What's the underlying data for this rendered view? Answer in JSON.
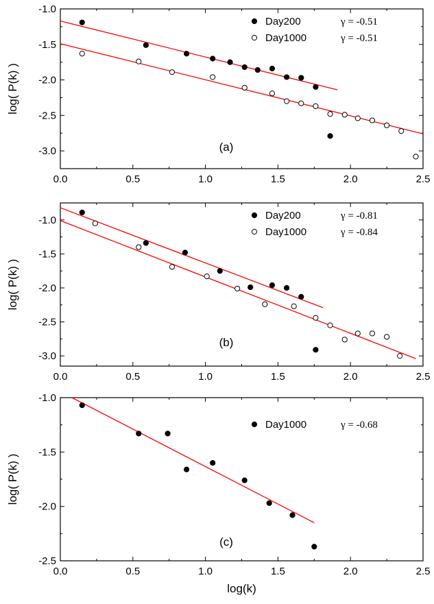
{
  "chart_data": [
    {
      "type": "scatter",
      "panel_label": "(a)",
      "xlim": [
        0.0,
        2.5
      ],
      "ylim": [
        -3.25,
        -1.0
      ],
      "xticks": [
        "0.0",
        "0.5",
        "1.0",
        "1.5",
        "2.0",
        "2.5"
      ],
      "yticks": [
        "-1.0",
        "-1.5",
        "-2.0",
        "-2.5",
        "-3.0"
      ],
      "ylabel": "log( P(k) )",
      "xlabel": "",
      "series": [
        {
          "name": "Day200",
          "gamma": "γ = -0.51",
          "marker": "filled",
          "points": [
            [
              0.15,
              -1.19
            ],
            [
              0.59,
              -1.51
            ],
            [
              0.87,
              -1.63
            ],
            [
              1.05,
              -1.7
            ],
            [
              1.17,
              -1.75
            ],
            [
              1.27,
              -1.82
            ],
            [
              1.36,
              -1.86
            ],
            [
              1.46,
              -1.84
            ],
            [
              1.56,
              -1.96
            ],
            [
              1.66,
              -1.97
            ],
            [
              1.76,
              -2.1
            ],
            [
              1.86,
              -2.79
            ]
          ],
          "fit": [
            [
              0.0,
              -1.17
            ],
            [
              1.91,
              -2.14
            ]
          ]
        },
        {
          "name": "Day1000",
          "gamma": "γ = -0.51",
          "marker": "open",
          "points": [
            [
              0.15,
              -1.63
            ],
            [
              0.54,
              -1.74
            ],
            [
              0.77,
              -1.89
            ],
            [
              1.05,
              -1.96
            ],
            [
              1.27,
              -2.11
            ],
            [
              1.46,
              -2.19
            ],
            [
              1.56,
              -2.3
            ],
            [
              1.66,
              -2.33
            ],
            [
              1.76,
              -2.37
            ],
            [
              1.86,
              -2.48
            ],
            [
              1.96,
              -2.49
            ],
            [
              2.05,
              -2.54
            ],
            [
              2.15,
              -2.57
            ],
            [
              2.25,
              -2.64
            ],
            [
              2.35,
              -2.72
            ],
            [
              2.45,
              -3.08
            ]
          ],
          "fit": [
            [
              0.0,
              -1.49
            ],
            [
              2.5,
              -2.76
            ]
          ]
        }
      ]
    },
    {
      "type": "scatter",
      "panel_label": "(b)",
      "xlim": [
        0.0,
        2.5
      ],
      "ylim": [
        -3.15,
        -0.75
      ],
      "xticks": [
        "0.0",
        "0.5",
        "1.0",
        "1.5",
        "2.0",
        "2.5"
      ],
      "yticks": [
        "-1.0",
        "-1.5",
        "-2.0",
        "-2.5",
        "-3.0"
      ],
      "ylabel": "log( P(k) )",
      "xlabel": "",
      "series": [
        {
          "name": "Day200",
          "gamma": "γ = -0.81",
          "marker": "filled",
          "points": [
            [
              0.15,
              -0.89
            ],
            [
              0.59,
              -1.34
            ],
            [
              0.86,
              -1.48
            ],
            [
              1.1,
              -1.75
            ],
            [
              1.31,
              -1.99
            ],
            [
              1.46,
              -1.96
            ],
            [
              1.56,
              -2.0
            ],
            [
              1.66,
              -2.13
            ],
            [
              1.76,
              -2.91
            ]
          ],
          "fit": [
            [
              0.0,
              -0.82
            ],
            [
              1.81,
              -2.29
            ]
          ]
        },
        {
          "name": "Day1000",
          "gamma": "γ = -0.84",
          "marker": "open",
          "points": [
            [
              0.24,
              -1.05
            ],
            [
              0.54,
              -1.4
            ],
            [
              0.77,
              -1.69
            ],
            [
              1.01,
              -1.83
            ],
            [
              1.22,
              -2.01
            ],
            [
              1.41,
              -2.24
            ],
            [
              1.61,
              -2.27
            ],
            [
              1.76,
              -2.44
            ],
            [
              1.86,
              -2.55
            ],
            [
              1.96,
              -2.76
            ],
            [
              2.05,
              -2.67
            ],
            [
              2.15,
              -2.67
            ],
            [
              2.25,
              -2.72
            ],
            [
              2.34,
              -3.0
            ]
          ],
          "fit": [
            [
              0.0,
              -1.01
            ],
            [
              2.45,
              -3.04
            ]
          ]
        }
      ]
    },
    {
      "type": "scatter",
      "panel_label": "(c)",
      "xlim": [
        0.0,
        2.5
      ],
      "ylim": [
        -2.5,
        -1.0
      ],
      "xticks": [
        "0.0",
        "0.5",
        "1.0",
        "1.5",
        "2.0",
        "2.5"
      ],
      "yticks": [
        "-1.0",
        "-1.5",
        "-2.0",
        "-2.5"
      ],
      "ylabel": "log( P(k) )",
      "xlabel": "log(k)",
      "series": [
        {
          "name": "Day1000",
          "gamma": "γ = -0.68",
          "marker": "filled",
          "points": [
            [
              0.15,
              -1.07
            ],
            [
              0.54,
              -1.33
            ],
            [
              0.74,
              -1.33
            ],
            [
              0.87,
              -1.66
            ],
            [
              1.05,
              -1.6
            ],
            [
              1.27,
              -1.76
            ],
            [
              1.44,
              -1.97
            ],
            [
              1.6,
              -2.08
            ],
            [
              1.75,
              -2.37
            ]
          ],
          "fit": [
            [
              0.08,
              -1.0
            ],
            [
              1.75,
              -2.15
            ]
          ]
        }
      ]
    }
  ],
  "colors": {
    "fit_line": "#ff0000",
    "marker": "#000000",
    "axis": "#000000"
  }
}
